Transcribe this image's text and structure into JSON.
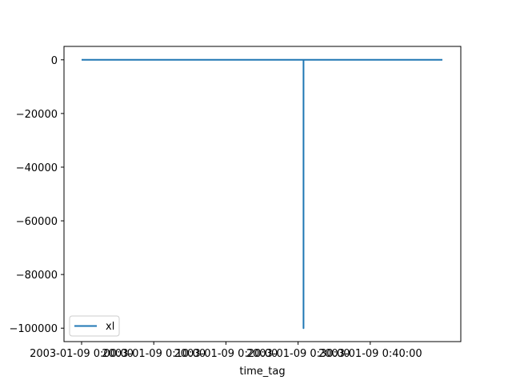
{
  "chart_data": {
    "type": "line",
    "title": "",
    "xlabel": "time_tag",
    "ylabel": "",
    "x_ticks": [
      "2003-01-09 0:00:00",
      "2003-01-09 0:10:00",
      "2003-01-09 0:20:00",
      "2003-01-09 0:30:00",
      "2003-01-09 0:40:00"
    ],
    "xlim_minutes_labeled": [
      0,
      50
    ],
    "y_ticks": [
      0,
      -20000,
      -40000,
      -60000,
      -80000,
      -100000
    ],
    "y_tick_labels": [
      "0",
      "−20000",
      "−40000",
      "−60000",
      "−80000",
      "−100000"
    ],
    "ylim": [
      -105000,
      5000
    ],
    "grid": false,
    "legend": {
      "placement": "lower-left",
      "entries": [
        "xl"
      ]
    },
    "series": [
      {
        "name": "xl",
        "color": "#1f77b4",
        "x": [
          "2003-01-09 0:00:00",
          "2003-01-09 0:30:45",
          "2003-01-09 0:30:45",
          "2003-01-09 0:30:45",
          "2003-01-09 0:50:00"
        ],
        "values": [
          0,
          0,
          -100000,
          0,
          0
        ]
      }
    ]
  }
}
